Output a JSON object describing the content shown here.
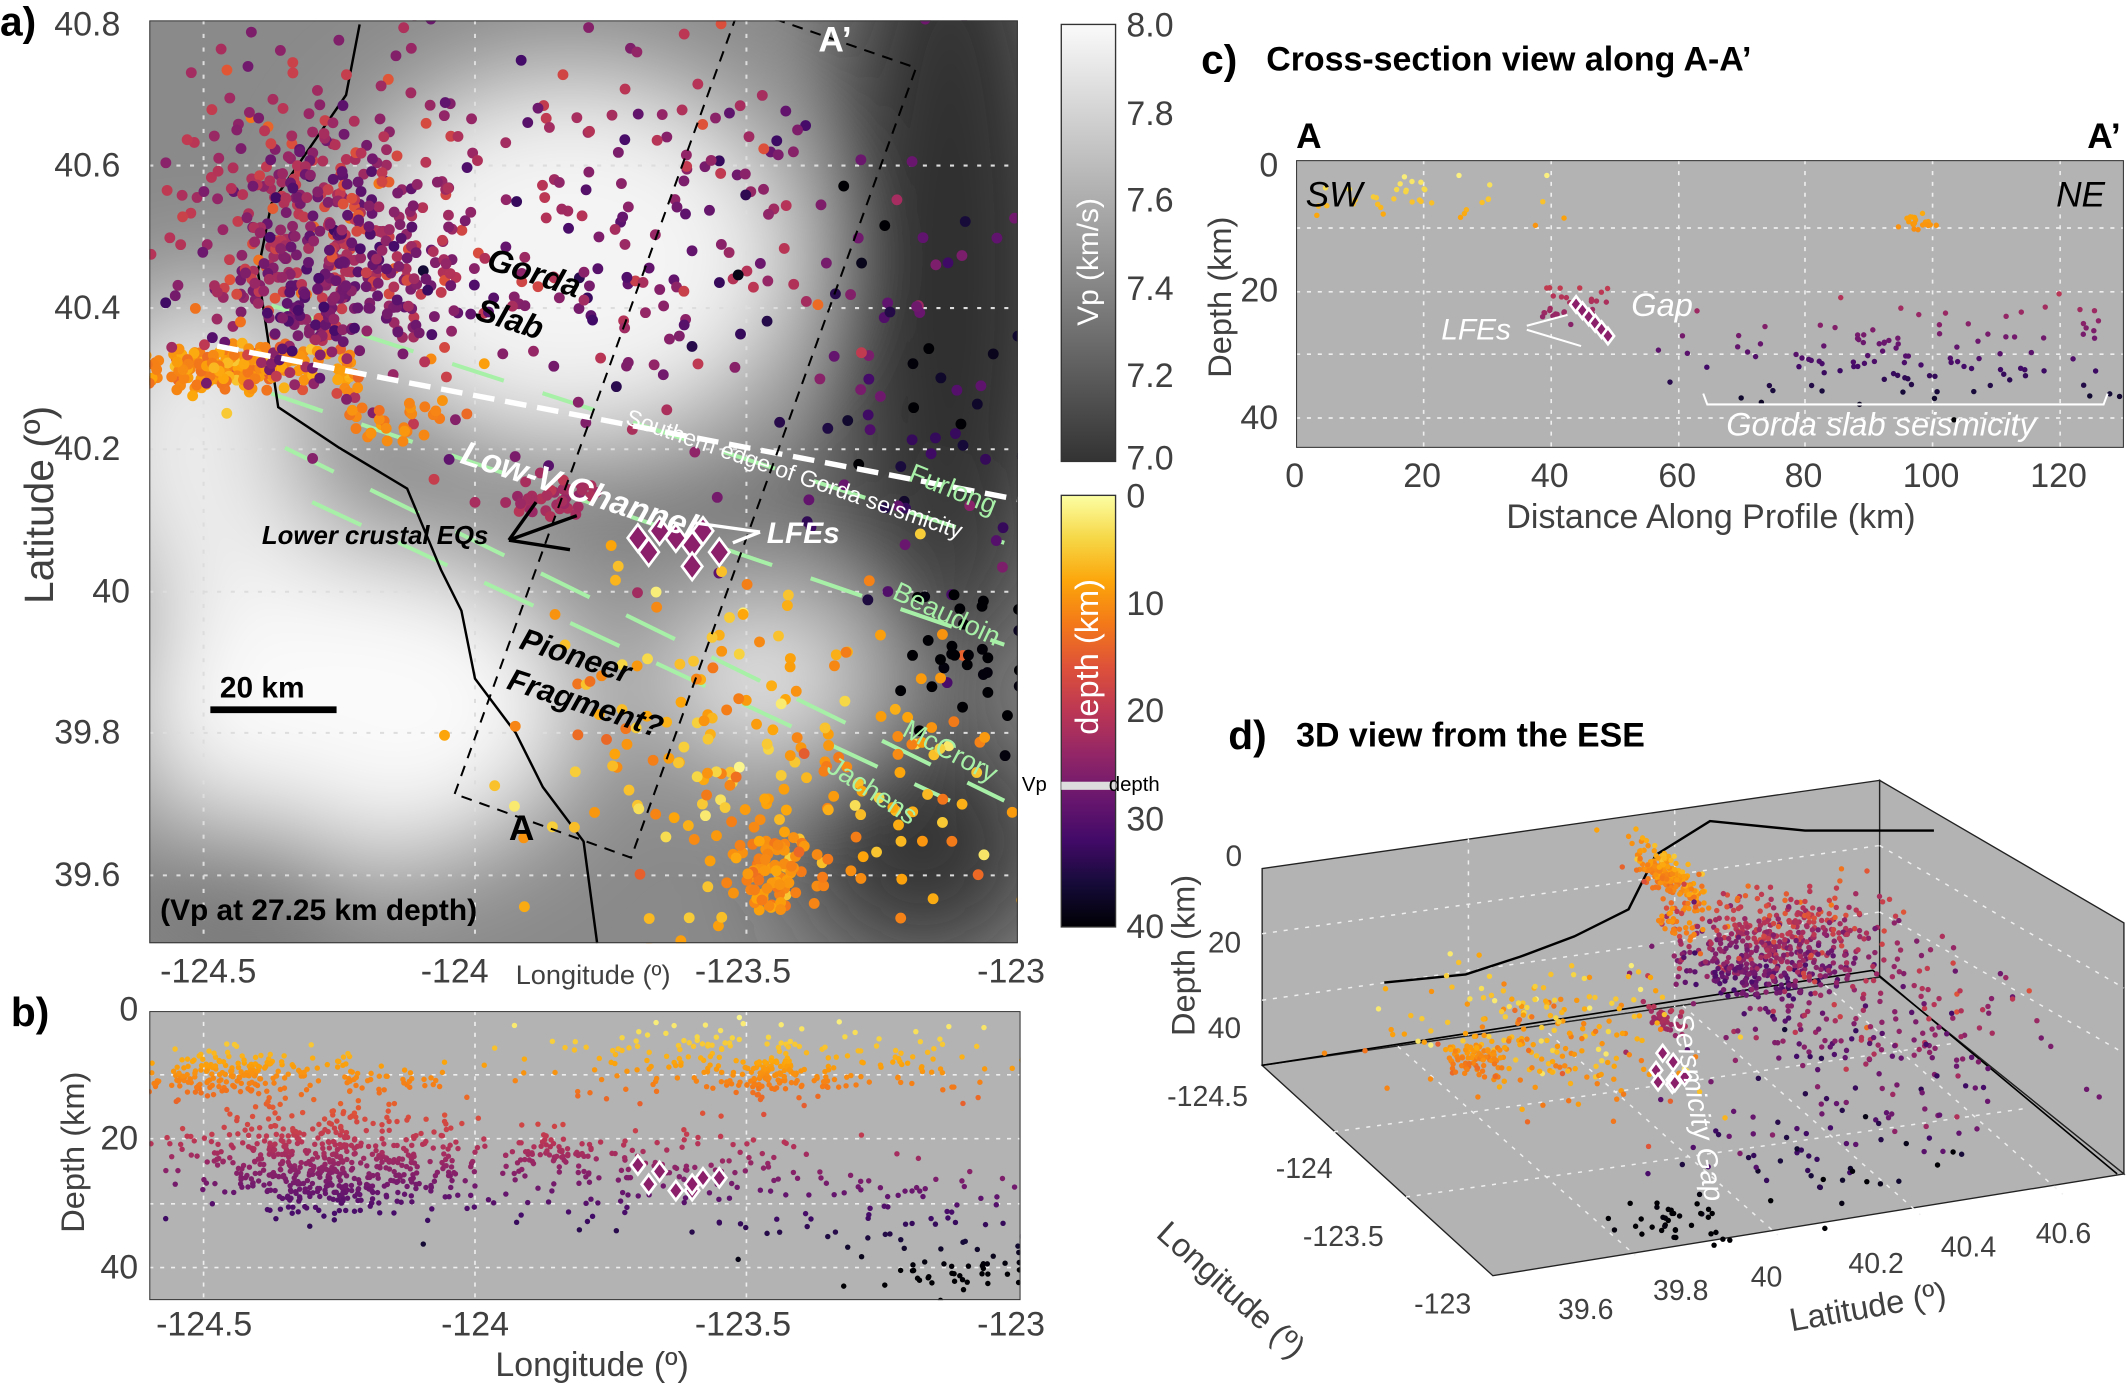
{
  "panel_a": {
    "label": "a)",
    "annotation_depth": "(Vp at 27.25 km depth)",
    "scalebar": "20 km",
    "labels": {
      "gorda_slab_1": "Gorda",
      "gorda_slab_2": "Slab",
      "low_v": "Low-V Channel",
      "southern_edge": "Southern edge of Gorda seismicity",
      "lower_crustal": "Lower crustal EQs",
      "lfes": "LFEs",
      "pioneer_1": "Pioneer",
      "pioneer_2": "Fragment?",
      "a_start": "A",
      "a_end": "A’",
      "furlong": "Furlong",
      "beaudoin": "Beaudoin",
      "mccrory": "McCrory",
      "jachens": "Jachens"
    },
    "xlabel": "Longitude (º)",
    "ylabel": "Latitude (º)",
    "xticks": [
      "-124.5",
      "-124",
      "-123.5",
      "-123"
    ],
    "yticks": [
      "40.8",
      "40.6",
      "40.4",
      "40.2",
      "40",
      "39.8",
      "39.6"
    ]
  },
  "colorbars": {
    "vp": {
      "label": "Vp (km/s)",
      "ticks": [
        "8.0",
        "7.8",
        "7.6",
        "7.4",
        "7.2",
        "7.0"
      ],
      "range": [
        7.0,
        8.0
      ]
    },
    "depth": {
      "label": "depth (km)",
      "ticks": [
        "0",
        "10",
        "20",
        "30",
        "40"
      ],
      "range": [
        0,
        40
      ],
      "colormap": "inferno-reversed"
    },
    "legend_vp": "Vp",
    "legend_depth": "depth"
  },
  "panel_b": {
    "label": "b)",
    "xlabel": "Longitude (º)",
    "ylabel": "Depth (km)",
    "xticks": [
      "-124.5",
      "-124",
      "-123.5",
      "-123"
    ],
    "yticks": [
      "0",
      "20",
      "40"
    ]
  },
  "panel_c": {
    "label": "c)",
    "title": "Cross-section view along A-A’",
    "end_a": "A",
    "end_a2": "A’",
    "sw": "SW",
    "ne": "NE",
    "gap": "Gap",
    "lfes": "LFEs",
    "gorda": "Gorda slab seismicity",
    "xlabel": "Distance Along Profile (km)",
    "ylabel": "Depth (km)",
    "xticks": [
      "0",
      "20",
      "40",
      "60",
      "80",
      "100",
      "120"
    ],
    "yticks": [
      "0",
      "20",
      "40"
    ]
  },
  "panel_d": {
    "label": "d)",
    "title": "3D view from the ESE",
    "zlabel": "Depth (km)",
    "xlabel": "Longitude (º)",
    "ylabel": "Latitude (º)",
    "gap": "Seismicity Gap",
    "zticks": [
      "0",
      "20",
      "40"
    ],
    "lonticks": [
      "-124.5",
      "-124",
      "-123.5",
      "-123"
    ],
    "latticks": [
      "39.6",
      "39.8",
      "40",
      "40.2",
      "40.4",
      "40.6"
    ]
  },
  "chart_data": {
    "type": "scatter",
    "map_extent": {
      "lon": [
        -124.6,
        -123.0
      ],
      "lat": [
        39.5,
        40.8
      ]
    },
    "depth_range": [
      0,
      45
    ],
    "profile_range_km": [
      0,
      130
    ],
    "grid": true,
    "event_clusters": [
      {
        "lon": -124.45,
        "lat": 40.31,
        "depth": 10,
        "slon": 0.12,
        "slat": 0.015,
        "sdepth": 2,
        "n": 220
      },
      {
        "lon": -124.3,
        "lat": 40.5,
        "depth": 22,
        "slon": 0.12,
        "slat": 0.1,
        "sdepth": 4,
        "n": 380
      },
      {
        "lon": -124.25,
        "lat": 40.42,
        "depth": 28,
        "slon": 0.08,
        "slat": 0.06,
        "sdepth": 2,
        "n": 120
      },
      {
        "lon": -123.8,
        "lat": 40.5,
        "depth": 25,
        "slon": 0.3,
        "slat": 0.16,
        "sdepth": 4,
        "n": 260
      },
      {
        "lon": -123.85,
        "lat": 40.13,
        "depth": 22,
        "slon": 0.05,
        "slat": 0.015,
        "sdepth": 1,
        "n": 40
      },
      {
        "lon": -124.15,
        "lat": 40.24,
        "depth": 11,
        "slon": 0.05,
        "slat": 0.015,
        "sdepth": 1,
        "n": 30
      },
      {
        "lon": -123.2,
        "lat": 40.3,
        "depth": 34,
        "slon": 0.12,
        "slat": 0.2,
        "sdepth": 5,
        "n": 70
      },
      {
        "lon": -123.45,
        "lat": 39.75,
        "depth": 8,
        "slon": 0.22,
        "slat": 0.13,
        "sdepth": 3,
        "n": 220
      },
      {
        "lon": -123.45,
        "lat": 39.6,
        "depth": 10,
        "slon": 0.04,
        "slat": 0.03,
        "sdepth": 1.5,
        "n": 80
      },
      {
        "lon": -123.1,
        "lat": 39.9,
        "depth": 41,
        "slon": 0.08,
        "slat": 0.05,
        "sdepth": 1.5,
        "n": 35
      }
    ],
    "lfes": [
      {
        "lon": -123.7,
        "lat": 40.07,
        "depth": 24
      },
      {
        "lon": -123.68,
        "lat": 40.05,
        "depth": 27
      },
      {
        "lon": -123.66,
        "lat": 40.08,
        "depth": 25
      },
      {
        "lon": -123.63,
        "lat": 40.07,
        "depth": 28
      },
      {
        "lon": -123.6,
        "lat": 40.06,
        "depth": 28
      },
      {
        "lon": -123.58,
        "lat": 40.08,
        "depth": 26
      },
      {
        "lon": -123.55,
        "lat": 40.05,
        "depth": 26
      },
      {
        "lon": -123.6,
        "lat": 40.03,
        "depth": 27
      }
    ],
    "profile_clusters": [
      {
        "dist": 15,
        "depth": 5,
        "sdist": 12,
        "sdepth": 2,
        "n": 40
      },
      {
        "dist": 43,
        "depth": 22,
        "sdist": 3,
        "sdepth": 2,
        "n": 30
      },
      {
        "dist": 94,
        "depth": 30,
        "sdist": 18,
        "sdepth": 4,
        "n": 110
      },
      {
        "dist": 98,
        "depth": 9,
        "sdist": 2,
        "sdepth": 1,
        "n": 20
      },
      {
        "dist": 124,
        "depth": 23,
        "sdist": 3,
        "sdepth": 3,
        "n": 10
      }
    ],
    "profile_lfes": [
      {
        "dist": 44,
        "depth": 22
      },
      {
        "dist": 45,
        "depth": 23
      },
      {
        "dist": 46,
        "depth": 24
      },
      {
        "dist": 47,
        "depth": 25
      },
      {
        "dist": 48,
        "depth": 26
      },
      {
        "dist": 49,
        "depth": 27
      }
    ]
  }
}
